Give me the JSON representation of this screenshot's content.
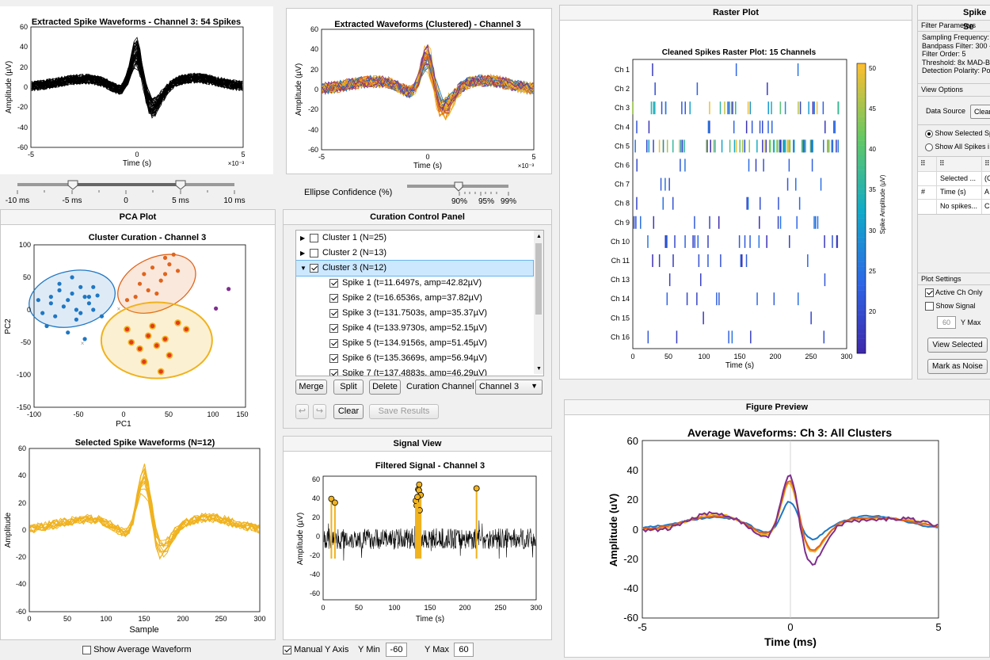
{
  "colors": {
    "blue": "#1f77c4",
    "orange": "#e0641c",
    "yellow": "#f0b21e",
    "purple": "#7e2f8e",
    "black": "#000000"
  },
  "top_left_plot": {
    "title": "Extracted Spike Waveforms - Channel 3: 54 Spikes",
    "xlabel": "Time (s)",
    "ylabel": "Amplitude (µV)",
    "xticks": [
      "-5",
      "0",
      "5"
    ],
    "yticks": [
      "60",
      "40",
      "20",
      "0",
      "-20",
      "-40",
      "-60"
    ],
    "exp": "×10⁻³"
  },
  "time_slider": {
    "ticks": [
      "-10 ms",
      "-5 ms",
      "0",
      "5 ms",
      "10 ms"
    ]
  },
  "clustered_plot": {
    "title": "Extracted Waveforms (Clustered) - Channel 3",
    "xlabel": "Time (s)",
    "ylabel": "Amplitude (µV)",
    "xticks": [
      "-5",
      "0",
      "5"
    ],
    "yticks": [
      "60",
      "40",
      "20",
      "0",
      "-20",
      "-40",
      "-60"
    ],
    "exp": "×10⁻³"
  },
  "ellipse_slider": {
    "label": "Ellipse Confidence (%)",
    "ticks": [
      "90%",
      "95%",
      "99%"
    ]
  },
  "pca_panel": {
    "title": "PCA Plot",
    "plot_title": "Cluster Curation - Channel 3",
    "xlabel": "PC1",
    "ylabel": "PC2",
    "xticks": [
      "-100",
      "-50",
      "0",
      "50",
      "100",
      "150"
    ],
    "yticks": [
      "100",
      "50",
      "0",
      "-50",
      "-100",
      "-150"
    ]
  },
  "selected_waveforms": {
    "title": "Selected Spike Waveforms (N=12)",
    "xlabel": "Sample",
    "ylabel": "Amplitude",
    "xticks": [
      "0",
      "50",
      "100",
      "150",
      "200",
      "250",
      "300"
    ],
    "yticks": [
      "60",
      "40",
      "20",
      "0",
      "-20",
      "-40",
      "-60"
    ]
  },
  "show_avg": {
    "label": "Show Average Waveform",
    "checked": false
  },
  "curation": {
    "title": "Curation Control Panel",
    "tree": [
      {
        "label": "Cluster 1 (N=25)",
        "level": 0,
        "expanded": false,
        "checked": false
      },
      {
        "label": "Cluster 2 (N=13)",
        "level": 0,
        "expanded": false,
        "checked": false
      },
      {
        "label": "Cluster 3 (N=12)",
        "level": 0,
        "expanded": true,
        "checked": true,
        "selected": true
      },
      {
        "label": "Spike 1 (t=11.6497s, amp=42.82µV)",
        "level": 1,
        "checked": true
      },
      {
        "label": "Spike 2 (t=16.6536s, amp=37.82µV)",
        "level": 1,
        "checked": true
      },
      {
        "label": "Spike 3 (t=131.7503s, amp=35.37µV)",
        "level": 1,
        "checked": true
      },
      {
        "label": "Spike 4 (t=133.9730s, amp=52.15µV)",
        "level": 1,
        "checked": true
      },
      {
        "label": "Spike 5 (t=134.9156s, amp=51.45µV)",
        "level": 1,
        "checked": true
      },
      {
        "label": "Spike 6 (t=135.3669s, amp=56.94µV)",
        "level": 1,
        "checked": true
      },
      {
        "label": "Spike 7 (t=137.4883s, amp=46.29µV)",
        "level": 1,
        "checked": true
      }
    ],
    "merge": "Merge",
    "split": "Split",
    "delete": "Delete",
    "channel_label": "Curation Channel",
    "channel_value": "Channel 3",
    "clear": "Clear",
    "save": "Save Results"
  },
  "signal_view": {
    "title": "Signal View",
    "plot_title": "Filtered Signal - Channel 3",
    "xlabel": "Time (s)",
    "ylabel": "Amplitude (µV)",
    "xticks": [
      "0",
      "50",
      "100",
      "150",
      "200",
      "250",
      "300"
    ],
    "yticks": [
      "60",
      "40",
      "20",
      "0",
      "-20",
      "-40",
      "-60"
    ]
  },
  "manual_y": {
    "label": "Manual Y Axis",
    "checked": true,
    "ymin_label": "Y Min",
    "ymin": "-60",
    "ymax_label": "Y Max",
    "ymax": "60"
  },
  "raster": {
    "title": "Raster Plot",
    "plot_title": "Cleaned Spikes Raster Plot: 15 Channels",
    "xlabel": "Time (s)",
    "channels": [
      "Ch 1",
      "Ch 2",
      "Ch 3",
      "Ch 4",
      "Ch 5",
      "Ch 6",
      "Ch 7",
      "Ch 8",
      "Ch 9",
      "Ch 10",
      "Ch 11",
      "Ch 13",
      "Ch 14",
      "Ch 15",
      "Ch 16"
    ],
    "xticks": [
      "0",
      "50",
      "100",
      "150",
      "200",
      "250",
      "300"
    ],
    "colorbar_label": "Spike Amplitude (µV)",
    "colorbar_ticks": [
      "50",
      "45",
      "40",
      "35",
      "30",
      "25",
      "20"
    ]
  },
  "settings": {
    "title": "Spike Se",
    "filter_header": "Filter Parameters",
    "filter_lines": [
      "Sampling Frequency:",
      "Bandpass Filter: 300 -",
      "Filter Order: 5",
      "Threshold: 8x MAD-B",
      "Detection Polarity: Po"
    ],
    "view_header": "View Options",
    "data_source_label": "Data Source",
    "data_source_value": "Clean",
    "radio1": "Show Selected Sp",
    "radio2": "Show All Spikes i",
    "table": {
      "h1": "⠿",
      "h2": "⠿",
      "h3": "⠿",
      "r1c2": "Selected ...",
      "r1c3": "(C",
      "r2c1": "#",
      "r2c2": "Time (s)",
      "r2c3": "A",
      "r3c2": "No spikes...",
      "r3c3": "C"
    },
    "plot_header": "Plot Settings",
    "active_ch": "Active Ch Only",
    "show_signal": "Show Signal",
    "ymax_value": "60",
    "ymax_label": "Y Max",
    "view_selected": "View Selected",
    "mark_noise": "Mark as Noise"
  },
  "preview": {
    "title": "Figure Preview",
    "plot_title": "Average Waveforms: Ch 3: All Clusters",
    "xlabel": "Time (ms)",
    "ylabel": "Amplitude (uV)",
    "xticks": [
      "-5",
      "0",
      "5"
    ],
    "yticks": [
      "60",
      "40",
      "20",
      "0",
      "-20",
      "-40",
      "-60"
    ]
  }
}
